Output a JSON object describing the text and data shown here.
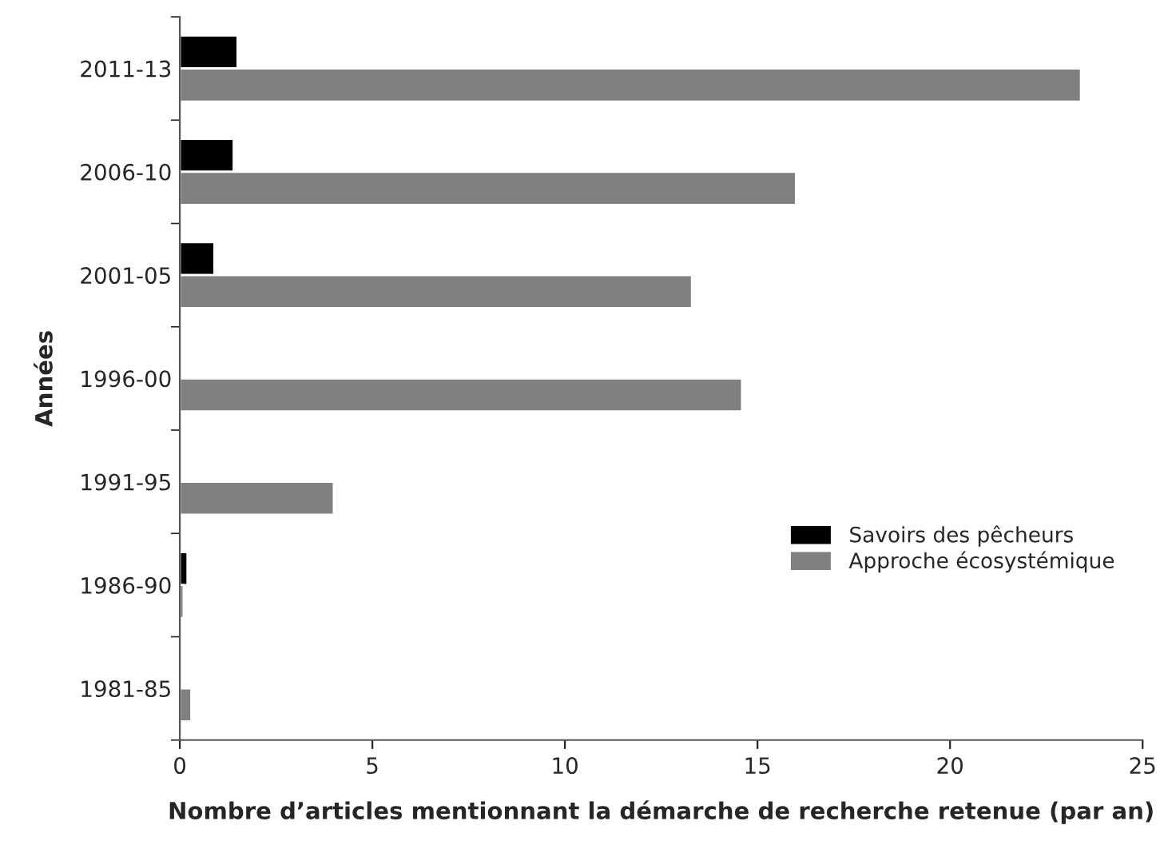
{
  "chart_data": {
    "type": "bar",
    "orientation": "horizontal",
    "xlabel": "Nombre d’articles mentionnant la démarche de recherche retenue (par an)",
    "ylabel": "Années",
    "categories": [
      "2011-13",
      "2006-10",
      "2001-05",
      "1996-00",
      "1991-95",
      "1986-90",
      "1981-85"
    ],
    "series": [
      {
        "name": "Savoirs des pêcheurs",
        "color": "#000000",
        "values": [
          1.5,
          1.4,
          0.9,
          null,
          null,
          0.2,
          null
        ]
      },
      {
        "name": "Approche écosystémique",
        "color": "#808083",
        "values": [
          23.4,
          16.0,
          13.3,
          14.6,
          4.0,
          0.1,
          0.3
        ]
      }
    ],
    "xlim": [
      0,
      25
    ],
    "xticks": [
      0,
      5,
      10,
      15,
      20,
      25
    ],
    "grid": false,
    "legend": "lower right"
  }
}
